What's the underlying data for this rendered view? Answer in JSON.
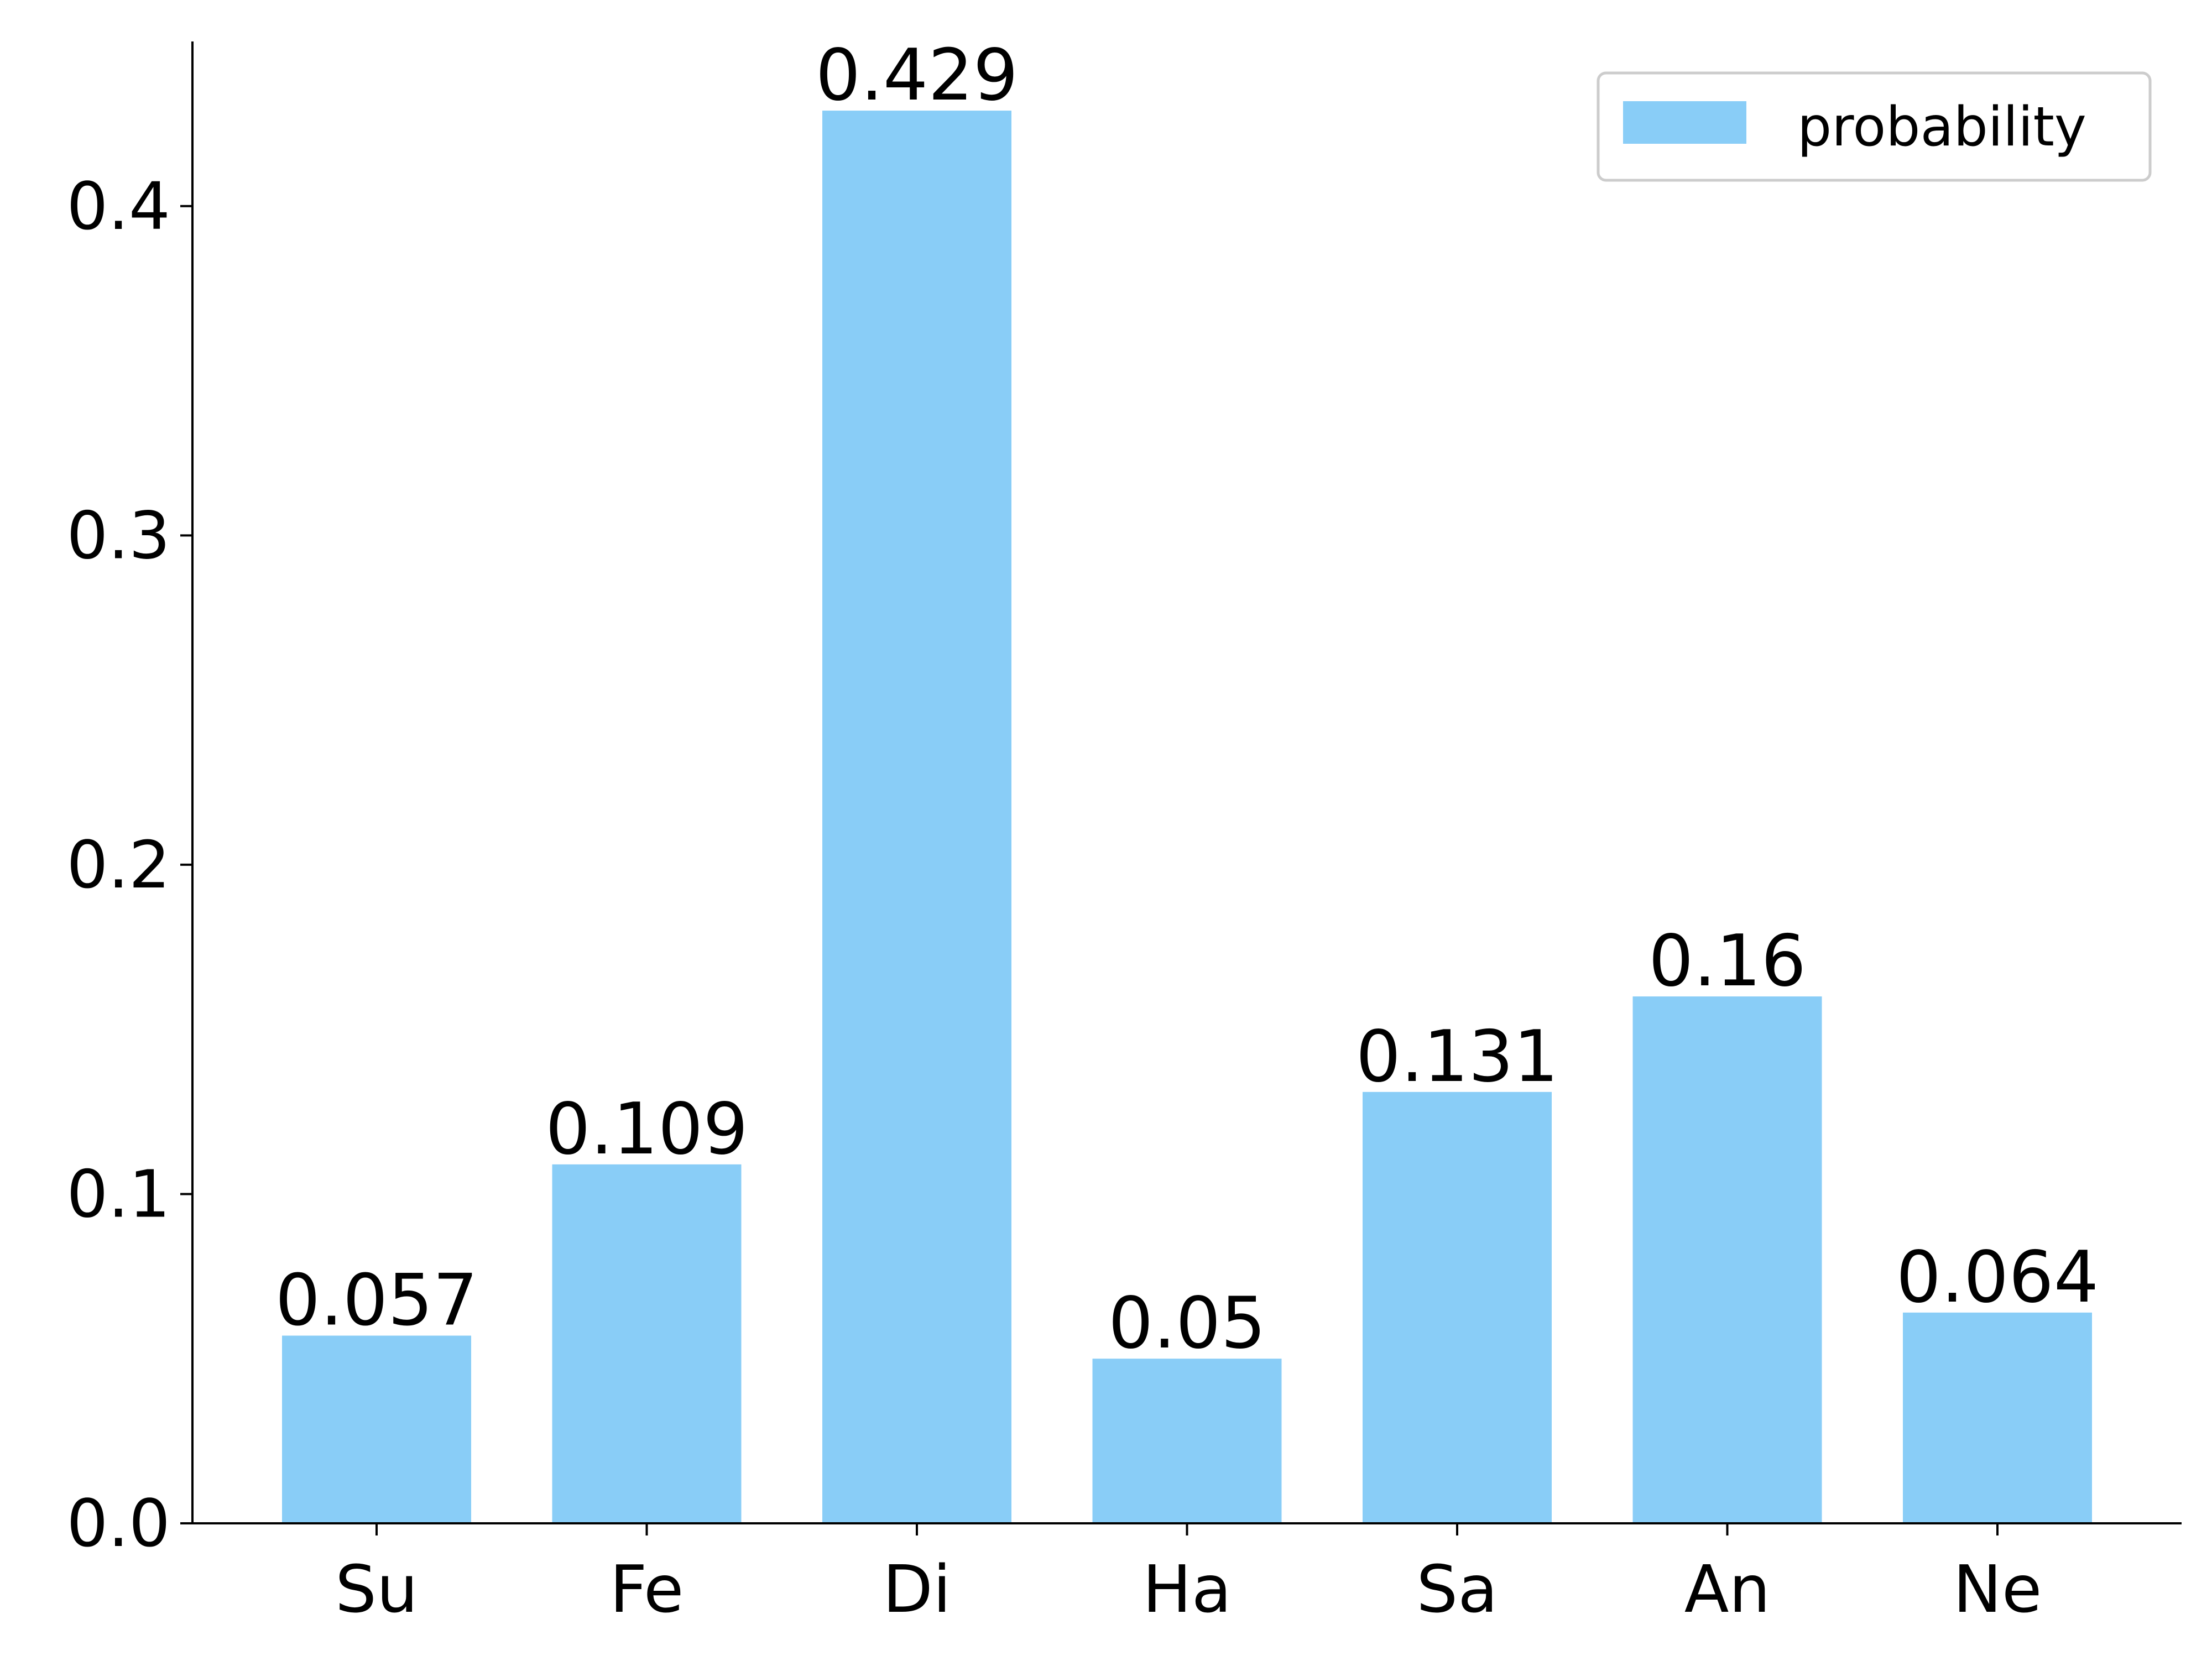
{
  "chart_data": {
    "type": "bar",
    "categories": [
      "Su",
      "Fe",
      "Di",
      "Ha",
      "Sa",
      "An",
      "Ne"
    ],
    "series": [
      {
        "name": "probability",
        "values": [
          0.057,
          0.109,
          0.429,
          0.05,
          0.131,
          0.16,
          0.064
        ]
      }
    ],
    "data_labels": [
      "0.057",
      "0.109",
      "0.429",
      "0.05",
      "0.131",
      "0.16",
      "0.064"
    ],
    "y_ticks": [
      "0.0",
      "0.1",
      "0.2",
      "0.3",
      "0.4"
    ],
    "y_tick_values": [
      0.0,
      0.1,
      0.2,
      0.3,
      0.4
    ],
    "ylim": [
      0,
      0.45
    ],
    "title": "",
    "xlabel": "",
    "ylabel": "",
    "grid": false,
    "legend_position": "top-right",
    "bar_color": "#89CDF7",
    "axis_color": "#000000",
    "legend_frame_color": "#CCCCCC"
  }
}
